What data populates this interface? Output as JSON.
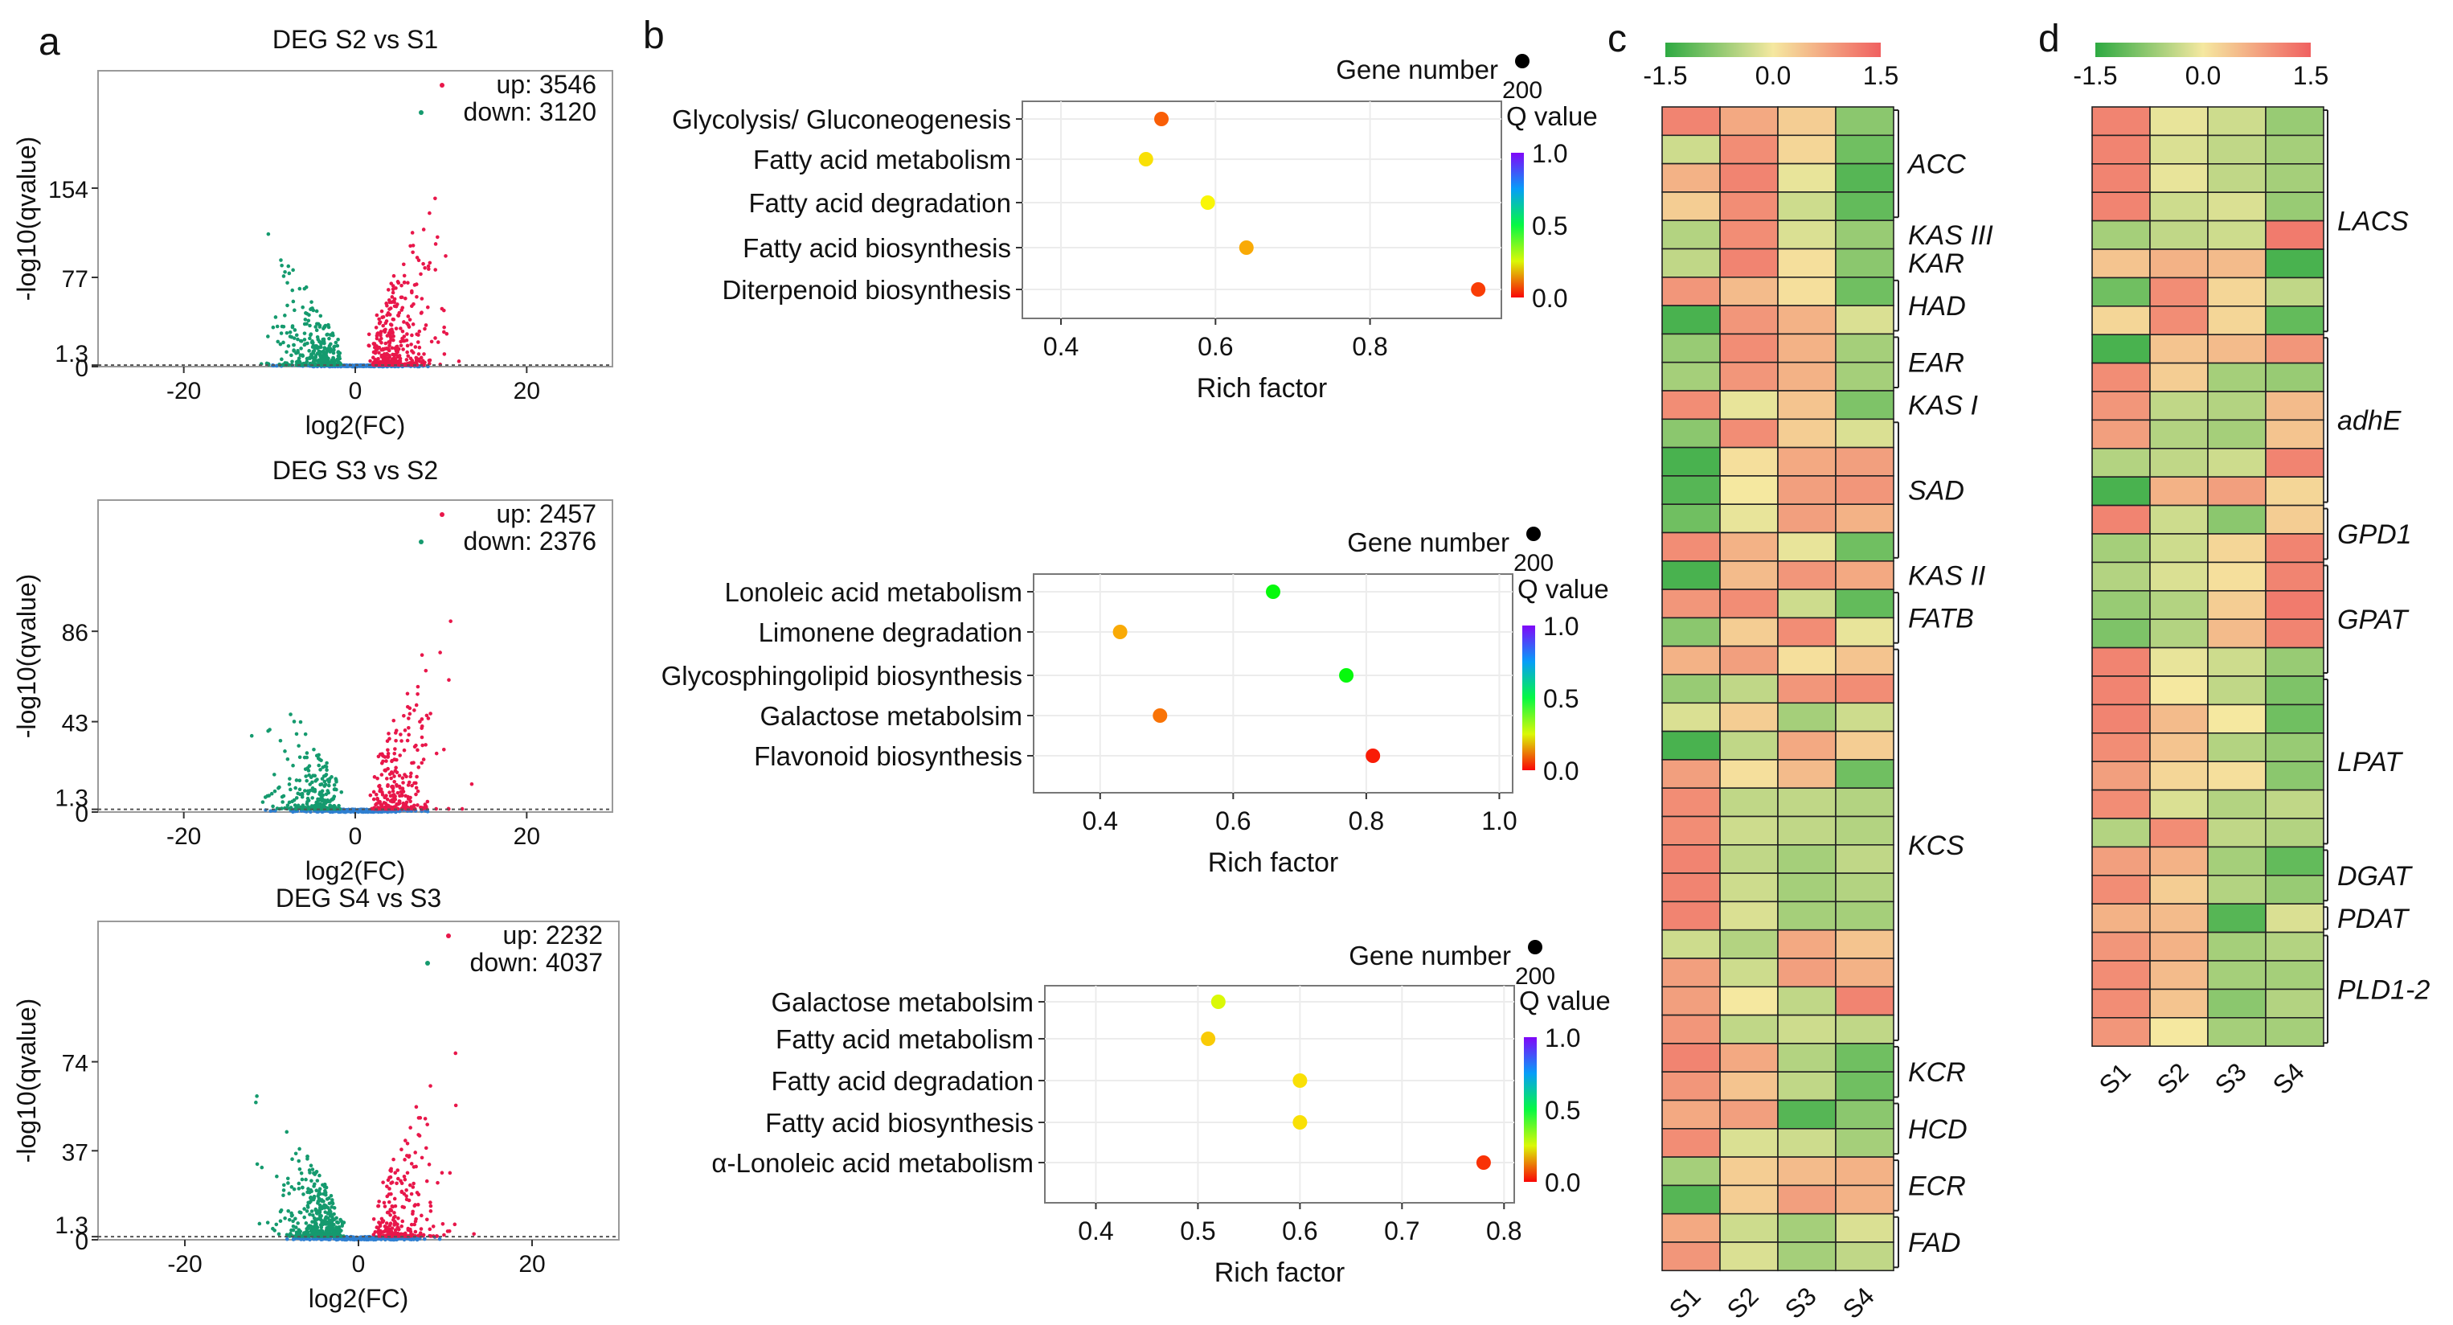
{
  "panel_letters": [
    "a",
    "b",
    "c",
    "d"
  ],
  "chart_data": [
    {
      "type": "scatter",
      "panel": "a",
      "title": "DEG S2 vs S1",
      "xlabel": "log2(FC)",
      "ylabel": "-log10(qvalue)",
      "xticks": [
        "-20",
        "0",
        "20"
      ],
      "yticks": [
        "0",
        "1.3",
        "77",
        "154"
      ],
      "xlim": [
        -30,
        30
      ],
      "ylim": [
        0,
        240
      ],
      "threshold": 1.3,
      "annot_up": "up: 3546",
      "annot_down": "down: 3120",
      "up_count": 3546,
      "down_count": 3120,
      "colors": {
        "up": "#e8174a",
        "down": "#159a6e",
        "ns": "#2e7fd1"
      }
    },
    {
      "type": "scatter",
      "panel": "a",
      "title": "DEG S3 vs S2",
      "xlabel": "log2(FC)",
      "ylabel": "-log10(qvalue)",
      "xticks": [
        "-20",
        "0",
        "20"
      ],
      "yticks": [
        "0",
        "1.3",
        "43",
        "86"
      ],
      "xlim": [
        -30,
        30
      ],
      "ylim": [
        0,
        140
      ],
      "threshold": 1.3,
      "annot_up": "up: 2457",
      "annot_down": "down: 2376",
      "up_count": 2457,
      "down_count": 2376,
      "colors": {
        "up": "#e8174a",
        "down": "#159a6e",
        "ns": "#2e7fd1"
      }
    },
    {
      "type": "scatter",
      "panel": "a",
      "title": "DEG S4 vs S3",
      "xlabel": "log2(FC)",
      "ylabel": "-log10(qvalue)",
      "xticks": [
        "-20",
        "0",
        "20"
      ],
      "yticks": [
        "0",
        "1.3",
        "37",
        "74"
      ],
      "xlim": [
        -30,
        30
      ],
      "ylim": [
        0,
        125
      ],
      "threshold": 1.3,
      "annot_up": "up: 2232",
      "annot_down": "down: 4037",
      "up_count": 2232,
      "down_count": 4037,
      "colors": {
        "up": "#e8174a",
        "down": "#159a6e",
        "ns": "#2e7fd1"
      }
    },
    {
      "type": "scatter",
      "panel": "b",
      "xlabel": "Rich factor",
      "size_legend_title": "Gene number",
      "size_legend_value": "200",
      "color_legend_title": "Q value",
      "color_ticks": [
        "1.0",
        "0.5",
        "0.0"
      ],
      "xlim": [
        0.35,
        0.97
      ],
      "xticks": [
        0.4,
        0.6,
        0.8
      ],
      "terms": [
        {
          "name": "Glycolysis/ Gluconeogenesis",
          "rich": 0.53,
          "q": 0.08
        },
        {
          "name": "Fatty acid metabolism",
          "rich": 0.51,
          "q": 0.2
        },
        {
          "name": "Fatty acid degradation",
          "rich": 0.59,
          "q": 0.22
        },
        {
          "name": "Fatty acid biosynthesis",
          "rich": 0.64,
          "q": 0.15
        },
        {
          "name": "Diterpenoid biosynthesis",
          "rich": 0.94,
          "q": 0.05
        }
      ]
    },
    {
      "type": "scatter",
      "panel": "b",
      "xlabel": "Rich factor",
      "size_legend_title": "Gene number",
      "size_legend_value": "200",
      "color_legend_title": "Q value",
      "color_ticks": [
        "1.0",
        "0.5",
        "0.0"
      ],
      "xlim": [
        0.3,
        1.02
      ],
      "xticks": [
        0.4,
        0.6,
        0.8,
        1.0
      ],
      "terms": [
        {
          "name": "Lonoleic acid metabolism",
          "rich": 0.66,
          "q": 0.45
        },
        {
          "name": "Limonene degradation",
          "rich": 0.43,
          "q": 0.15
        },
        {
          "name": "Glycosphingolipid biosynthesis",
          "rich": 0.77,
          "q": 0.45
        },
        {
          "name": "Galactose metabolsim",
          "rich": 0.49,
          "q": 0.1
        },
        {
          "name": "Flavonoid biosynthesis",
          "rich": 0.81,
          "q": 0.02
        }
      ]
    },
    {
      "type": "scatter",
      "panel": "b",
      "xlabel": "Rich factor",
      "size_legend_title": "Gene number",
      "size_legend_value": "200",
      "color_legend_title": "Q value",
      "color_ticks": [
        "1.0",
        "0.5",
        "0.0"
      ],
      "xlim": [
        0.35,
        0.81
      ],
      "xticks": [
        0.4,
        0.5,
        0.6,
        0.7,
        0.8
      ],
      "terms": [
        {
          "name": "Galactose metabolsim",
          "rich": 0.52,
          "q": 0.25
        },
        {
          "name": "Fatty acid metabolism",
          "rich": 0.51,
          "q": 0.18
        },
        {
          "name": "Fatty acid degradation",
          "rich": 0.6,
          "q": 0.2
        },
        {
          "name": "Fatty acid biosynthesis",
          "rich": 0.6,
          "q": 0.2
        },
        {
          "name": "α-Lonoleic acid metabolism",
          "rich": 0.78,
          "q": 0.04
        }
      ]
    },
    {
      "type": "heatmap",
      "panel": "c",
      "columns": [
        "S1",
        "S2",
        "S3",
        "S4"
      ],
      "scale_ticks": [
        "-1.5",
        "0.0",
        "1.5"
      ],
      "scale_range": [
        -1.5,
        1.5
      ],
      "rows": [
        [
          1.1,
          0.7,
          0.3,
          -0.8
        ],
        [
          -0.3,
          1.0,
          0.2,
          -1.0
        ],
        [
          0.6,
          1.1,
          -0.1,
          -1.2
        ],
        [
          0.3,
          1.0,
          -0.3,
          -1.1
        ],
        [
          -0.5,
          1.0,
          -0.2,
          -0.7
        ],
        [
          -0.4,
          1.1,
          0.1,
          -0.8
        ],
        [
          0.9,
          0.5,
          0.1,
          -1.0
        ],
        [
          -1.3,
          0.9,
          0.6,
          -0.2
        ],
        [
          -0.7,
          1.0,
          0.6,
          -0.6
        ],
        [
          -0.6,
          0.9,
          0.6,
          -0.6
        ],
        [
          1.0,
          -0.1,
          0.4,
          -0.9
        ],
        [
          -0.8,
          1.0,
          0.3,
          -0.2
        ],
        [
          -1.3,
          0.1,
          0.7,
          0.8
        ],
        [
          -1.2,
          0.0,
          0.8,
          0.9
        ],
        [
          -1.0,
          -0.1,
          0.8,
          0.6
        ],
        [
          1.0,
          0.6,
          -0.1,
          -1.0
        ],
        [
          -1.3,
          0.5,
          0.9,
          0.7
        ],
        [
          0.9,
          1.0,
          -0.3,
          -1.1
        ],
        [
          -0.8,
          0.3,
          1.0,
          -0.1
        ],
        [
          0.6,
          0.8,
          0.1,
          0.4
        ],
        [
          -0.7,
          -0.4,
          0.9,
          1.0
        ],
        [
          -0.2,
          0.3,
          -0.6,
          -0.3
        ],
        [
          -1.3,
          -0.4,
          0.7,
          0.3
        ],
        [
          0.8,
          0.1,
          0.5,
          -1.0
        ],
        [
          1.0,
          -0.4,
          -0.4,
          -0.5
        ],
        [
          1.0,
          -0.3,
          -0.4,
          -0.5
        ],
        [
          1.1,
          -0.4,
          -0.6,
          -0.4
        ],
        [
          1.1,
          -0.3,
          -0.6,
          -0.5
        ],
        [
          1.1,
          -0.2,
          -0.6,
          -0.6
        ],
        [
          -0.3,
          -0.5,
          0.7,
          0.4
        ],
        [
          0.8,
          -0.3,
          0.8,
          0.6
        ],
        [
          0.8,
          0.0,
          -0.4,
          1.1
        ],
        [
          0.9,
          -0.4,
          -0.3,
          -0.4
        ],
        [
          1.1,
          0.7,
          -0.5,
          -1.0
        ],
        [
          0.9,
          0.4,
          -0.4,
          -1.0
        ],
        [
          0.7,
          0.8,
          -1.2,
          -0.8
        ],
        [
          1.0,
          -0.2,
          -0.3,
          -0.6
        ],
        [
          -0.6,
          0.3,
          0.5,
          0.6
        ],
        [
          -1.2,
          0.3,
          0.8,
          0.6
        ],
        [
          0.7,
          -0.3,
          -0.6,
          -0.2
        ],
        [
          0.9,
          -0.2,
          -0.6,
          -0.4
        ]
      ],
      "gene_labels": [
        "ACC",
        "KAS III",
        "KAR",
        "HAD",
        "EAR",
        "KAS I",
        "SAD",
        "KAS II",
        "FATB",
        "KCS",
        "KCR",
        "HCD",
        "ECR",
        "FAD"
      ],
      "bracketed": [
        true,
        false,
        false,
        true,
        true,
        false,
        true,
        false,
        true,
        true,
        true,
        true,
        true,
        true
      ],
      "label_ranges": [
        [
          0,
          3
        ],
        [
          4,
          4
        ],
        [
          5,
          5
        ],
        [
          6,
          7
        ],
        [
          8,
          9
        ],
        [
          10,
          10
        ],
        [
          11,
          15
        ],
        [
          16,
          16
        ],
        [
          17,
          18
        ],
        [
          19,
          32
        ],
        [
          33,
          34
        ],
        [
          35,
          36
        ],
        [
          37,
          38
        ],
        [
          39,
          40
        ]
      ]
    },
    {
      "type": "heatmap",
      "panel": "d",
      "columns": [
        "S1",
        "S2",
        "S3",
        "S4"
      ],
      "scale_ticks": [
        "-1.5",
        "0.0",
        "1.5"
      ],
      "scale_range": [
        -1.5,
        1.5
      ],
      "rows": [
        [
          1.1,
          -0.1,
          -0.3,
          -0.7
        ],
        [
          1.1,
          -0.2,
          -0.4,
          -0.6
        ],
        [
          1.1,
          -0.1,
          -0.4,
          -0.6
        ],
        [
          1.1,
          -0.3,
          -0.2,
          -0.7
        ],
        [
          -0.6,
          -0.4,
          -0.3,
          1.2
        ],
        [
          0.4,
          0.6,
          0.5,
          -1.3
        ],
        [
          -1.0,
          1.0,
          0.2,
          -0.4
        ],
        [
          0.2,
          1.0,
          0.2,
          -1.1
        ],
        [
          -1.3,
          0.4,
          0.5,
          0.9
        ],
        [
          1.0,
          0.3,
          -0.6,
          -0.7
        ],
        [
          0.9,
          -0.4,
          -0.5,
          0.5
        ],
        [
          0.8,
          -0.5,
          -0.6,
          0.4
        ],
        [
          -0.5,
          -0.4,
          -0.3,
          1.1
        ],
        [
          -1.3,
          0.6,
          0.8,
          0.2
        ],
        [
          1.1,
          -0.3,
          -0.8,
          0.3
        ],
        [
          -0.6,
          -0.3,
          0.2,
          1.1
        ],
        [
          -0.5,
          -0.2,
          0.1,
          1.1
        ],
        [
          -0.7,
          -0.5,
          0.3,
          1.2
        ],
        [
          -0.9,
          -0.5,
          0.5,
          1.1
        ],
        [
          1.1,
          -0.1,
          -0.3,
          -0.7
        ],
        [
          1.1,
          0.0,
          -0.4,
          -0.9
        ],
        [
          1.1,
          0.5,
          0.0,
          -1.0
        ],
        [
          1.0,
          0.4,
          -0.5,
          -0.7
        ],
        [
          0.8,
          0.2,
          0.1,
          -0.8
        ],
        [
          1.0,
          -0.2,
          -0.5,
          -0.4
        ],
        [
          -0.5,
          1.0,
          -0.4,
          -0.5
        ],
        [
          0.8,
          0.6,
          -0.6,
          -1.1
        ],
        [
          1.0,
          0.3,
          -0.5,
          -0.7
        ],
        [
          0.6,
          0.5,
          -1.2,
          -0.2
        ],
        [
          0.9,
          0.6,
          -0.6,
          -0.5
        ],
        [
          1.0,
          0.5,
          -0.6,
          -0.6
        ],
        [
          1.0,
          0.4,
          -0.8,
          -0.5
        ],
        [
          0.9,
          0.0,
          -0.6,
          -0.6
        ]
      ],
      "gene_labels": [
        "LACS",
        "adhE",
        "GPD1",
        "GPAT",
        "LPAT",
        "DGAT",
        "PDAT",
        "PLD1-2"
      ],
      "bracketed": [
        true,
        true,
        true,
        true,
        true,
        true,
        true,
        true
      ],
      "label_ranges": [
        [
          0,
          7
        ],
        [
          8,
          13
        ],
        [
          14,
          15
        ],
        [
          16,
          19
        ],
        [
          20,
          25
        ],
        [
          26,
          27
        ],
        [
          28,
          28
        ],
        [
          29,
          32
        ]
      ]
    }
  ]
}
